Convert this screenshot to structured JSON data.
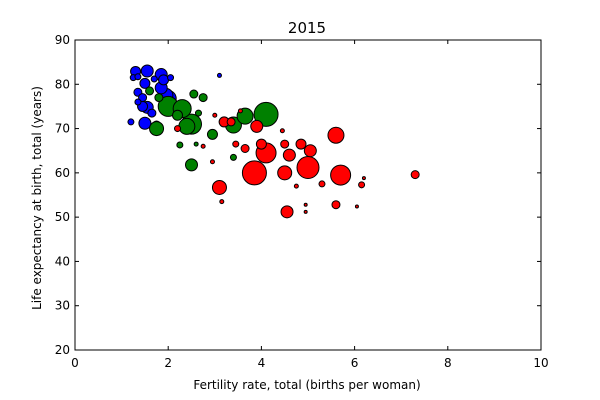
{
  "chart_data": {
    "type": "scatter",
    "title": "2015",
    "xlabel": "Fertility rate, total (births per woman)",
    "ylabel": "Life expectancy at birth, total (years)",
    "xlim": [
      0,
      10
    ],
    "ylim": [
      20,
      90
    ],
    "xticks": [
      0,
      2,
      4,
      6,
      8,
      10
    ],
    "yticks": [
      20,
      30,
      40,
      50,
      60,
      70,
      80,
      90
    ],
    "grid": false,
    "series": [
      {
        "color": "#0000ff",
        "points": [
          {
            "x": 1.25,
            "y": 81.5,
            "s": 3
          },
          {
            "x": 1.3,
            "y": 82.9,
            "s": 5
          },
          {
            "x": 1.35,
            "y": 81.7,
            "s": 3
          },
          {
            "x": 1.55,
            "y": 83.0,
            "s": 6
          },
          {
            "x": 1.7,
            "y": 81.2,
            "s": 3
          },
          {
            "x": 1.85,
            "y": 82.2,
            "s": 6
          },
          {
            "x": 1.9,
            "y": 81.0,
            "s": 5
          },
          {
            "x": 2.05,
            "y": 81.5,
            "s": 3
          },
          {
            "x": 1.5,
            "y": 80.2,
            "s": 5
          },
          {
            "x": 1.35,
            "y": 78.2,
            "s": 4
          },
          {
            "x": 1.45,
            "y": 77.0,
            "s": 4
          },
          {
            "x": 1.35,
            "y": 76.0,
            "s": 3
          },
          {
            "x": 1.45,
            "y": 75.0,
            "s": 5
          },
          {
            "x": 1.55,
            "y": 74.8,
            "s": 6
          },
          {
            "x": 1.85,
            "y": 79.2,
            "s": 6
          },
          {
            "x": 1.95,
            "y": 77.5,
            "s": 7
          },
          {
            "x": 2.0,
            "y": 76.8,
            "s": 8
          },
          {
            "x": 1.65,
            "y": 73.5,
            "s": 4
          },
          {
            "x": 1.5,
            "y": 71.2,
            "s": 6
          },
          {
            "x": 1.75,
            "y": 70.8,
            "s": 4
          },
          {
            "x": 1.2,
            "y": 71.5,
            "s": 3
          },
          {
            "x": 3.1,
            "y": 82.0,
            "s": 2
          }
        ]
      },
      {
        "color": "#008000",
        "points": [
          {
            "x": 1.75,
            "y": 70.0,
            "s": 7
          },
          {
            "x": 2.0,
            "y": 75.0,
            "s": 10
          },
          {
            "x": 2.3,
            "y": 74.5,
            "s": 9
          },
          {
            "x": 2.4,
            "y": 70.5,
            "s": 8
          },
          {
            "x": 2.5,
            "y": 71.0,
            "s": 10
          },
          {
            "x": 2.2,
            "y": 73.0,
            "s": 5
          },
          {
            "x": 2.55,
            "y": 77.8,
            "s": 4
          },
          {
            "x": 2.75,
            "y": 77.0,
            "s": 4
          },
          {
            "x": 2.65,
            "y": 73.5,
            "s": 3
          },
          {
            "x": 2.95,
            "y": 68.7,
            "s": 5
          },
          {
            "x": 2.25,
            "y": 66.3,
            "s": 3
          },
          {
            "x": 2.5,
            "y": 61.8,
            "s": 6
          },
          {
            "x": 3.4,
            "y": 70.8,
            "s": 8
          },
          {
            "x": 3.65,
            "y": 72.8,
            "s": 8
          },
          {
            "x": 4.1,
            "y": 73.2,
            "s": 12
          },
          {
            "x": 3.4,
            "y": 63.5,
            "s": 3
          },
          {
            "x": 1.6,
            "y": 78.5,
            "s": 4
          },
          {
            "x": 1.8,
            "y": 77.0,
            "s": 4
          },
          {
            "x": 2.6,
            "y": 66.5,
            "s": 2
          }
        ]
      },
      {
        "color": "#ff0000",
        "points": [
          {
            "x": 2.2,
            "y": 70.0,
            "s": 3
          },
          {
            "x": 3.2,
            "y": 71.5,
            "s": 5
          },
          {
            "x": 3.35,
            "y": 71.5,
            "s": 4
          },
          {
            "x": 3.9,
            "y": 70.5,
            "s": 6
          },
          {
            "x": 3.45,
            "y": 66.5,
            "s": 3
          },
          {
            "x": 3.65,
            "y": 65.5,
            "s": 4
          },
          {
            "x": 4.0,
            "y": 66.5,
            "s": 5
          },
          {
            "x": 4.1,
            "y": 64.5,
            "s": 10
          },
          {
            "x": 4.5,
            "y": 66.5,
            "s": 4
          },
          {
            "x": 4.6,
            "y": 64.0,
            "s": 6
          },
          {
            "x": 4.5,
            "y": 60.0,
            "s": 7
          },
          {
            "x": 3.85,
            "y": 60.0,
            "s": 12
          },
          {
            "x": 4.85,
            "y": 66.5,
            "s": 5
          },
          {
            "x": 5.05,
            "y": 65.0,
            "s": 6
          },
          {
            "x": 5.0,
            "y": 61.2,
            "s": 11
          },
          {
            "x": 5.6,
            "y": 68.5,
            "s": 8
          },
          {
            "x": 5.7,
            "y": 59.5,
            "s": 10
          },
          {
            "x": 3.1,
            "y": 56.7,
            "s": 7
          },
          {
            "x": 4.55,
            "y": 51.2,
            "s": 6
          },
          {
            "x": 5.6,
            "y": 52.8,
            "s": 4
          },
          {
            "x": 5.3,
            "y": 57.5,
            "s": 3
          },
          {
            "x": 6.15,
            "y": 57.3,
            "s": 3
          },
          {
            "x": 7.3,
            "y": 59.6,
            "s": 4
          },
          {
            "x": 3.15,
            "y": 53.5,
            "s": 2
          },
          {
            "x": 2.75,
            "y": 66.0,
            "s": 2
          },
          {
            "x": 2.95,
            "y": 62.5,
            "s": 2
          },
          {
            "x": 4.75,
            "y": 57.0,
            "s": 2
          },
          {
            "x": 4.95,
            "y": 52.8,
            "s": 1.5
          },
          {
            "x": 4.95,
            "y": 51.2,
            "s": 1.5
          },
          {
            "x": 6.05,
            "y": 52.4,
            "s": 1.5
          },
          {
            "x": 6.2,
            "y": 58.8,
            "s": 1.5
          },
          {
            "x": 3.0,
            "y": 73.0,
            "s": 2
          },
          {
            "x": 4.45,
            "y": 69.5,
            "s": 2
          },
          {
            "x": 3.55,
            "y": 74.0,
            "s": 2
          }
        ]
      }
    ]
  }
}
